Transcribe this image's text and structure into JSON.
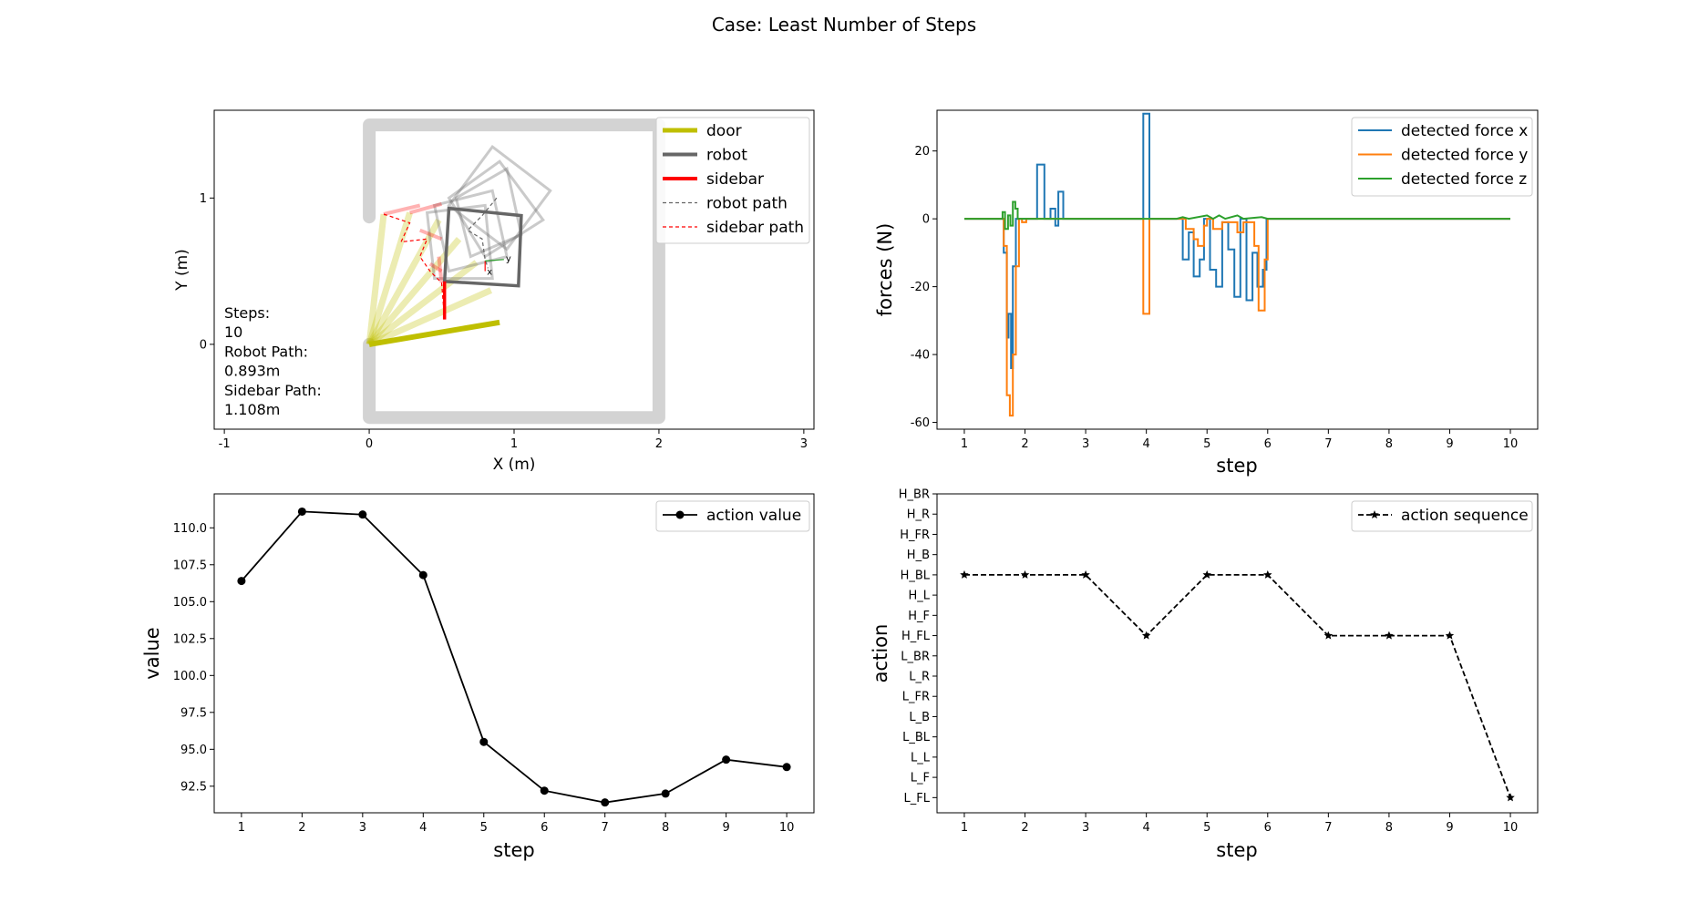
{
  "figure_title": "Case: Least Number of Steps",
  "colors": {
    "door": "#bfbf00",
    "robot": "#666666",
    "sidebar": "#ff0000",
    "force_x": "#1f77b4",
    "force_y": "#ff7f0e",
    "force_z": "#2ca02c",
    "wall": "#d3d3d3"
  },
  "chart_data": [
    {
      "type": "line",
      "name": "workspace",
      "xlabel": "X (m)",
      "ylabel": "Y (m)",
      "xlim": [
        -1.07,
        3.07
      ],
      "ylim": [
        -0.58,
        1.6
      ],
      "xticks": [
        -1,
        0,
        1,
        2,
        3
      ],
      "yticks": [
        0,
        1
      ],
      "legend": {
        "placement": "top-right",
        "entries": [
          {
            "label": "door",
            "style": "thick-olive"
          },
          {
            "label": "robot",
            "style": "thick-gray"
          },
          {
            "label": "sidebar",
            "style": "thick-red"
          },
          {
            "label": "robot path",
            "style": "dashed-gray"
          },
          {
            "label": "sidebar path",
            "style": "dashed-red"
          }
        ]
      },
      "annotation": [
        "Steps:",
        "10",
        "Robot Path:",
        "0.893m",
        "Sidebar Path:",
        "1.108m"
      ],
      "frame_labels": {
        "x": "x",
        "y": "y"
      },
      "walls": [
        [
          [
            0.0,
            0.87
          ],
          [
            0.0,
            1.5
          ],
          [
            2.0,
            1.5
          ],
          [
            2.0,
            -0.5
          ],
          [
            0.0,
            -0.5
          ],
          [
            0.0,
            0.0
          ]
        ]
      ],
      "door_history": [
        [
          [
            0.0,
            0.0
          ],
          [
            0.1,
            0.89
          ]
        ],
        [
          [
            0.0,
            0.0
          ],
          [
            0.28,
            0.9
          ]
        ],
        [
          [
            0.0,
            0.0
          ],
          [
            0.48,
            0.85
          ]
        ],
        [
          [
            0.0,
            0.0
          ],
          [
            0.62,
            0.72
          ]
        ],
        [
          [
            0.0,
            0.0
          ],
          [
            0.74,
            0.56
          ]
        ],
        [
          [
            0.0,
            0.0
          ],
          [
            0.84,
            0.37
          ]
        ]
      ],
      "door_final": [
        [
          0.0,
          0.0
        ],
        [
          0.9,
          0.15
        ]
      ],
      "robot_history": [
        [
          [
            0.85,
            1.35
          ],
          [
            1.25,
            1.05
          ],
          [
            0.95,
            0.65
          ],
          [
            0.55,
            0.95
          ]
        ],
        [
          [
            0.9,
            1.25
          ],
          [
            1.2,
            0.85
          ],
          [
            0.8,
            0.6
          ],
          [
            0.55,
            1.0
          ]
        ],
        [
          [
            0.6,
            1.0
          ],
          [
            0.95,
            1.2
          ],
          [
            1.05,
            0.75
          ],
          [
            0.7,
            0.6
          ]
        ],
        [
          [
            0.45,
            0.95
          ],
          [
            0.85,
            1.05
          ],
          [
            0.95,
            0.6
          ],
          [
            0.55,
            0.5
          ]
        ],
        [
          [
            0.4,
            0.9
          ],
          [
            0.8,
            0.95
          ],
          [
            0.85,
            0.45
          ],
          [
            0.45,
            0.45
          ]
        ]
      ],
      "robot_final": [
        [
          0.55,
          0.93
        ],
        [
          1.05,
          0.88
        ],
        [
          1.03,
          0.4
        ],
        [
          0.52,
          0.43
        ]
      ],
      "sidebar_history": [
        [
          [
            0.1,
            0.89
          ],
          [
            0.35,
            0.95
          ]
        ],
        [
          [
            0.28,
            0.9
          ],
          [
            0.5,
            0.96
          ]
        ],
        [
          [
            0.35,
            0.78
          ],
          [
            0.5,
            0.72
          ]
        ],
        [
          [
            0.48,
            0.6
          ],
          [
            0.5,
            0.42
          ]
        ],
        [
          [
            0.42,
            0.55
          ],
          [
            0.5,
            0.5
          ]
        ]
      ],
      "sidebar_final": [
        [
          0.52,
          0.43
        ],
        [
          0.52,
          0.17
        ]
      ],
      "robot_path": [
        [
          0.88,
          1.0
        ],
        [
          0.78,
          0.88
        ],
        [
          0.72,
          0.82
        ],
        [
          0.68,
          0.78
        ],
        [
          0.78,
          0.72
        ],
        [
          0.8,
          0.58
        ],
        [
          0.82,
          0.52
        ]
      ],
      "sidebar_path": [
        [
          0.1,
          0.89
        ],
        [
          0.28,
          0.83
        ],
        [
          0.22,
          0.7
        ],
        [
          0.4,
          0.72
        ],
        [
          0.35,
          0.6
        ],
        [
          0.42,
          0.5
        ],
        [
          0.5,
          0.42
        ],
        [
          0.52,
          0.17
        ]
      ],
      "frame_origin": [
        0.8,
        0.57
      ],
      "axis_x_end": [
        0.8,
        0.5
      ],
      "axis_y_end": [
        0.93,
        0.58
      ]
    },
    {
      "type": "line",
      "name": "forces",
      "xlabel": "step",
      "ylabel": "forces (N)",
      "xlim": [
        0.55,
        10.45
      ],
      "ylim": [
        -62,
        32
      ],
      "xticks": [
        1,
        2,
        3,
        4,
        5,
        6,
        7,
        8,
        9,
        10
      ],
      "yticks": [
        -60,
        -40,
        -20,
        0,
        20
      ],
      "legend_placement": "top-right",
      "series": [
        {
          "name": "detected force x",
          "color": "#1f77b4",
          "points": [
            [
              1,
              0
            ],
            [
              1.65,
              0
            ],
            [
              1.65,
              -10
            ],
            [
              1.7,
              -10
            ],
            [
              1.7,
              -35
            ],
            [
              1.73,
              -35
            ],
            [
              1.73,
              -28
            ],
            [
              1.77,
              -28
            ],
            [
              1.77,
              -44
            ],
            [
              1.8,
              -44
            ],
            [
              1.8,
              -14
            ],
            [
              1.85,
              -14
            ],
            [
              1.85,
              0
            ],
            [
              2.2,
              0
            ],
            [
              2.2,
              16
            ],
            [
              2.32,
              16
            ],
            [
              2.32,
              0
            ],
            [
              2.42,
              0
            ],
            [
              2.42,
              3
            ],
            [
              2.5,
              3
            ],
            [
              2.5,
              -2
            ],
            [
              2.55,
              -2
            ],
            [
              2.55,
              8
            ],
            [
              2.63,
              8
            ],
            [
              2.63,
              0
            ],
            [
              3.95,
              0
            ],
            [
              3.95,
              31
            ],
            [
              4.05,
              31
            ],
            [
              4.05,
              0
            ],
            [
              4.6,
              0
            ],
            [
              4.6,
              -12
            ],
            [
              4.7,
              -12
            ],
            [
              4.7,
              -4
            ],
            [
              4.78,
              -4
            ],
            [
              4.78,
              -17
            ],
            [
              4.88,
              -17
            ],
            [
              4.88,
              -12
            ],
            [
              4.95,
              -12
            ],
            [
              4.95,
              0
            ],
            [
              5.05,
              0
            ],
            [
              5.05,
              -15
            ],
            [
              5.15,
              -15
            ],
            [
              5.15,
              -20
            ],
            [
              5.25,
              -20
            ],
            [
              5.25,
              -1
            ],
            [
              5.35,
              -1
            ],
            [
              5.35,
              -9
            ],
            [
              5.45,
              -9
            ],
            [
              5.45,
              -23
            ],
            [
              5.55,
              -23
            ],
            [
              5.55,
              0
            ],
            [
              5.65,
              0
            ],
            [
              5.65,
              -24
            ],
            [
              5.75,
              -24
            ],
            [
              5.75,
              -10
            ],
            [
              5.83,
              -10
            ],
            [
              5.83,
              -20
            ],
            [
              5.92,
              -20
            ],
            [
              5.92,
              -15
            ],
            [
              5.98,
              -15
            ],
            [
              5.98,
              0
            ],
            [
              10,
              0
            ]
          ]
        },
        {
          "name": "detected force y",
          "color": "#ff7f0e",
          "points": [
            [
              1,
              0
            ],
            [
              1.65,
              0
            ],
            [
              1.65,
              -8
            ],
            [
              1.7,
              -8
            ],
            [
              1.7,
              -52
            ],
            [
              1.75,
              -52
            ],
            [
              1.75,
              -58
            ],
            [
              1.8,
              -58
            ],
            [
              1.8,
              -40
            ],
            [
              1.85,
              -40
            ],
            [
              1.85,
              -14
            ],
            [
              1.9,
              -14
            ],
            [
              1.9,
              0
            ],
            [
              1.95,
              0
            ],
            [
              1.95,
              -1
            ],
            [
              2.02,
              -1
            ],
            [
              2.02,
              0
            ],
            [
              3.95,
              0
            ],
            [
              3.95,
              -28
            ],
            [
              4.05,
              -28
            ],
            [
              4.05,
              0
            ],
            [
              4.65,
              0
            ],
            [
              4.65,
              -3
            ],
            [
              4.78,
              -3
            ],
            [
              4.78,
              -6
            ],
            [
              4.85,
              -6
            ],
            [
              4.85,
              -8
            ],
            [
              4.95,
              -8
            ],
            [
              4.95,
              -2
            ],
            [
              5.0,
              -2
            ],
            [
              5.0,
              0
            ],
            [
              5.1,
              0
            ],
            [
              5.1,
              -3
            ],
            [
              5.25,
              -3
            ],
            [
              5.25,
              -1
            ],
            [
              5.5,
              -1
            ],
            [
              5.5,
              -4
            ],
            [
              5.6,
              -4
            ],
            [
              5.6,
              -1
            ],
            [
              5.78,
              -1
            ],
            [
              5.78,
              -8
            ],
            [
              5.85,
              -8
            ],
            [
              5.85,
              -27
            ],
            [
              5.95,
              -27
            ],
            [
              5.95,
              -12
            ],
            [
              6.0,
              -12
            ],
            [
              6.0,
              0
            ],
            [
              10,
              0
            ]
          ]
        },
        {
          "name": "detected force z",
          "color": "#2ca02c",
          "points": [
            [
              1,
              0
            ],
            [
              1.63,
              0
            ],
            [
              1.63,
              2
            ],
            [
              1.67,
              2
            ],
            [
              1.67,
              -3
            ],
            [
              1.72,
              -3
            ],
            [
              1.72,
              1
            ],
            [
              1.76,
              1
            ],
            [
              1.76,
              -2
            ],
            [
              1.8,
              -2
            ],
            [
              1.8,
              5
            ],
            [
              1.84,
              5
            ],
            [
              1.84,
              3
            ],
            [
              1.88,
              3
            ],
            [
              1.88,
              0
            ],
            [
              3.9,
              0
            ],
            [
              4.5,
              0
            ],
            [
              4.6,
              0.5
            ],
            [
              4.7,
              0
            ],
            [
              5.0,
              1
            ],
            [
              5.1,
              0
            ],
            [
              5.2,
              1
            ],
            [
              5.3,
              0
            ],
            [
              5.5,
              1
            ],
            [
              5.6,
              0
            ],
            [
              5.9,
              0.5
            ],
            [
              6.0,
              0
            ],
            [
              10,
              0
            ]
          ]
        }
      ]
    },
    {
      "type": "line",
      "name": "action value",
      "xlabel": "step",
      "ylabel": "value",
      "xlim": [
        0.55,
        10.45
      ],
      "ylim": [
        90.7,
        112.3
      ],
      "xticks": [
        1,
        2,
        3,
        4,
        5,
        6,
        7,
        8,
        9,
        10
      ],
      "yticks": [
        92.5,
        95.0,
        97.5,
        100.0,
        102.5,
        105.0,
        107.5,
        110.0
      ],
      "legend_placement": "top-right",
      "series": [
        {
          "name": "action value",
          "color": "#000000",
          "marker": "circle",
          "x": [
            1,
            2,
            3,
            4,
            5,
            6,
            7,
            8,
            9,
            10
          ],
          "values": [
            106.4,
            111.1,
            110.9,
            106.8,
            95.5,
            92.2,
            91.4,
            92.0,
            94.3,
            93.8
          ]
        }
      ]
    },
    {
      "type": "line",
      "name": "action sequence",
      "xlabel": "step",
      "ylabel": "action",
      "xlim": [
        0.55,
        10.45
      ],
      "ylim": [
        -0.75,
        15.0
      ],
      "xticks": [
        1,
        2,
        3,
        4,
        5,
        6,
        7,
        8,
        9,
        10
      ],
      "yticks": [
        "L_FL",
        "L_F",
        "L_L",
        "L_BL",
        "L_B",
        "L_FR",
        "L_R",
        "L_BR",
        "H_FL",
        "H_F",
        "H_L",
        "H_BL",
        "H_B",
        "H_FR",
        "H_R",
        "H_BR"
      ],
      "legend_placement": "top-right",
      "series": [
        {
          "name": "action sequence",
          "color": "#000000",
          "marker": "star",
          "dash": "dashed",
          "x": [
            1,
            2,
            3,
            4,
            5,
            6,
            7,
            8,
            9,
            10
          ],
          "values": [
            "H_BL",
            "H_BL",
            "H_BL",
            "H_FL",
            "H_BL",
            "H_BL",
            "H_FL",
            "H_FL",
            "H_FL",
            "L_FL"
          ]
        }
      ]
    }
  ]
}
